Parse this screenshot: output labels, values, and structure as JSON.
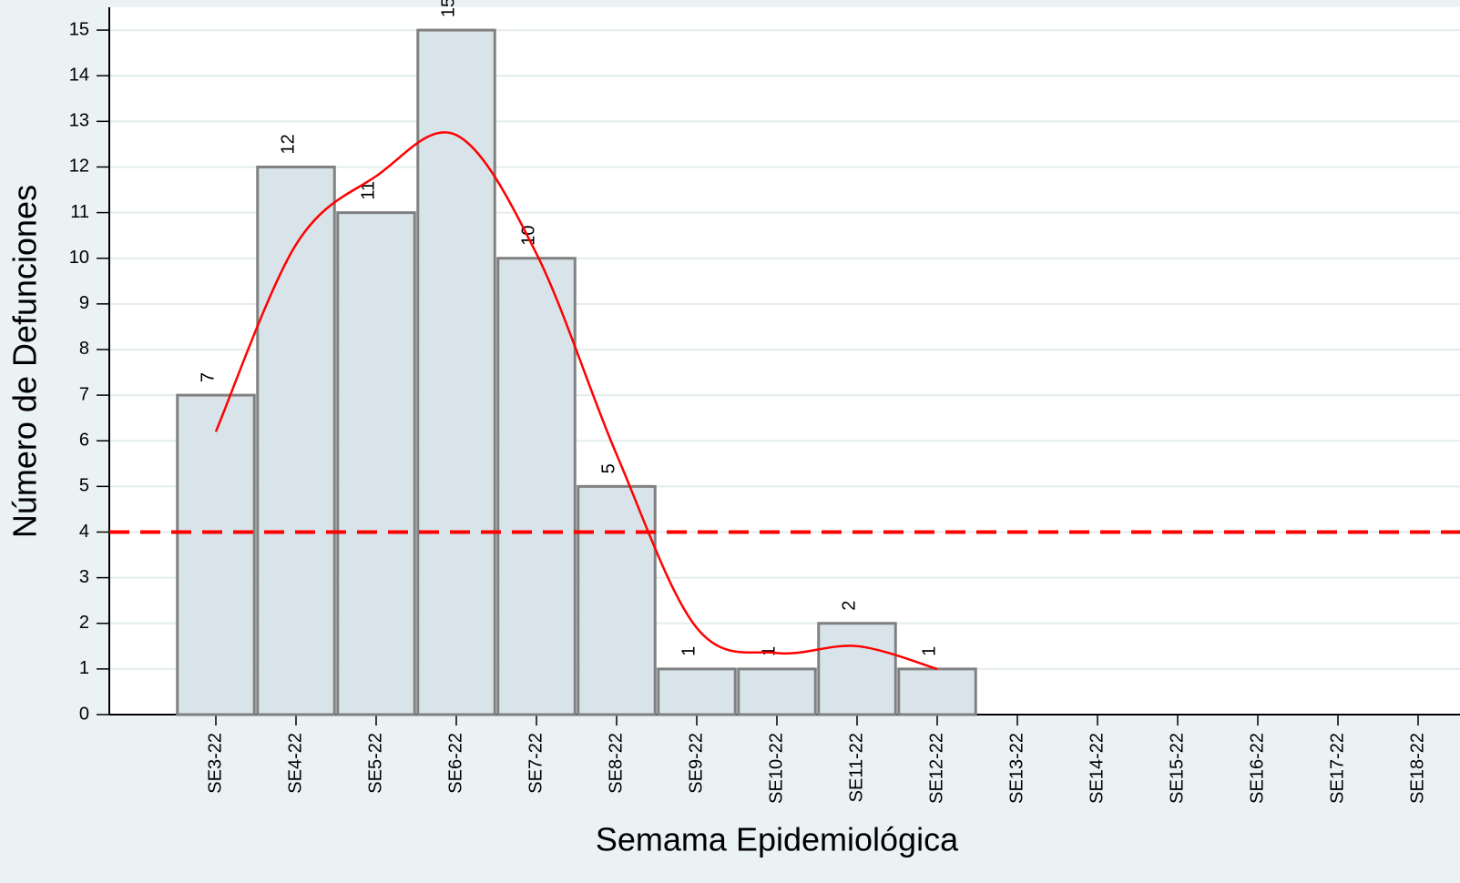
{
  "chart_data": {
    "type": "bar",
    "xlabel": "Semama Epidemiológica",
    "ylabel": "Número de Defunciones",
    "categories": [
      "SE3-22",
      "SE4-22",
      "SE5-22",
      "SE6-22",
      "SE7-22",
      "SE8-22",
      "SE9-22",
      "SE10-22",
      "SE11-22",
      "SE12-22",
      "SE13-22",
      "SE14-22",
      "SE15-22",
      "SE16-22",
      "SE17-22",
      "SE18-22"
    ],
    "values": [
      7,
      12,
      11,
      15,
      10,
      5,
      1,
      1,
      2,
      1,
      null,
      null,
      null,
      null,
      null,
      null
    ],
    "color": "#d9e4ea",
    "edge_color": "#808080",
    "trend": {
      "color": "#ff0000",
      "values": [
        6.2,
        10.3,
        11.8,
        12.7,
        10.1,
        5.7,
        1.9,
        1.35,
        1.5,
        1.0,
        null,
        null,
        null,
        null,
        null,
        null
      ]
    },
    "threshold": {
      "value": 4,
      "color": "#ff0000"
    },
    "ylim": [
      0,
      15.5
    ],
    "yticks": [
      0,
      1,
      2,
      3,
      4,
      5,
      6,
      7,
      8,
      9,
      10,
      11,
      12,
      13,
      14,
      15
    ],
    "grid": true
  }
}
